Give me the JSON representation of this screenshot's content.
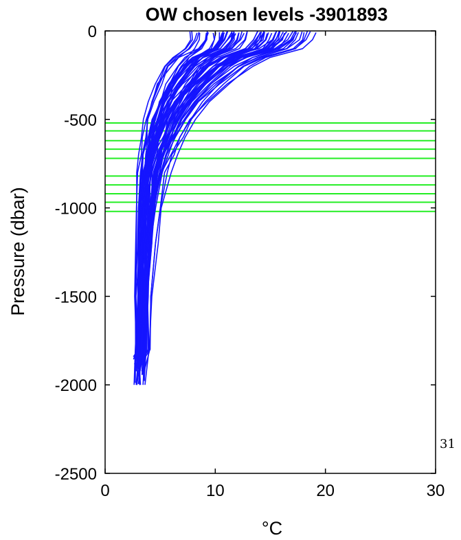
{
  "chart_data": {
    "type": "line",
    "title": "OW chosen levels -3901893",
    "xlabel": "°C",
    "ylabel": "Pressure (dbar)",
    "xlim": [
      0,
      30
    ],
    "ylim": [
      -2500,
      0
    ],
    "xticks": [
      0,
      10,
      20,
      30
    ],
    "yticks": [
      0,
      -500,
      -1000,
      -1500,
      -2000,
      -2500
    ],
    "grid": false,
    "side_annotation": "31",
    "series_color": "#1515ff",
    "level_color": "#22ee22",
    "chosen_levels": [
      -520,
      -565,
      -620,
      -668,
      -720,
      -820,
      -870,
      -920,
      -968,
      -1020
    ],
    "profile_template": [
      [
        0,
        0.8
      ],
      [
        -50,
        0.78
      ],
      [
        -100,
        0.72
      ],
      [
        -150,
        0.55
      ],
      [
        -200,
        0.45
      ],
      [
        -300,
        0.33
      ],
      [
        -400,
        0.24
      ],
      [
        -500,
        0.175
      ],
      [
        -600,
        0.13
      ],
      [
        -700,
        0.095
      ],
      [
        -800,
        0.07
      ],
      [
        -1000,
        0.045
      ],
      [
        -1200,
        0.03
      ],
      [
        -1500,
        0.018
      ],
      [
        -1800,
        0.01
      ],
      [
        -2000,
        0.0
      ]
    ],
    "deep_temperature_range": [
      2.6,
      3.6
    ],
    "surface_temperature_range": [
      9,
      22.5
    ],
    "profile_count": 70
  }
}
